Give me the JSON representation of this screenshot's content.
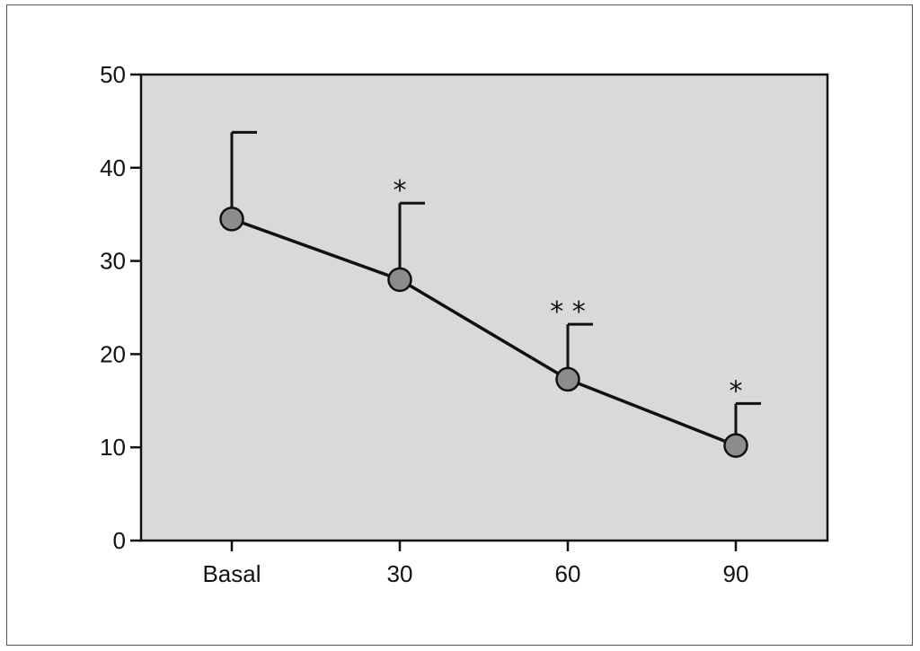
{
  "chart_data": {
    "type": "line",
    "title": "",
    "xlabel": "",
    "ylabel": "",
    "categories": [
      "Basal",
      "30",
      "60",
      "90"
    ],
    "series": [
      {
        "values": [
          34.5,
          28.0,
          17.3,
          10.2
        ],
        "error_upper": [
          43.8,
          36.2,
          23.2,
          14.7
        ],
        "significance": [
          "",
          "*",
          "* *",
          "*"
        ]
      }
    ],
    "ylim": [
      0,
      50
    ],
    "yticks": [
      0,
      10,
      20,
      30,
      40,
      50
    ],
    "grid": false,
    "legend": "none",
    "colors": {
      "plot_background": "#d9d9d9",
      "marker_fill": "#8c8c8c",
      "line": "#111111"
    }
  }
}
